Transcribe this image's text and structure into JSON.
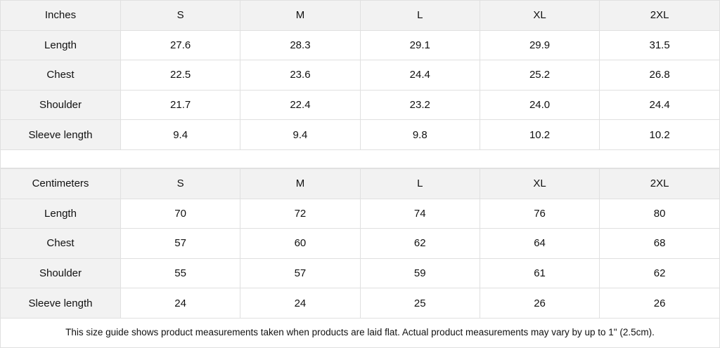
{
  "inches": {
    "header": [
      "Inches",
      "S",
      "M",
      "L",
      "XL",
      "2XL"
    ],
    "rows": [
      [
        "Length",
        "27.6",
        "28.3",
        "29.1",
        "29.9",
        "31.5"
      ],
      [
        "Chest",
        "22.5",
        "23.6",
        "24.4",
        "25.2",
        "26.8"
      ],
      [
        "Shoulder",
        "21.7",
        "22.4",
        "23.2",
        "24.0",
        "24.4"
      ],
      [
        "Sleeve length",
        "9.4",
        "9.4",
        "9.8",
        "10.2",
        "10.2"
      ]
    ]
  },
  "centimeters": {
    "header": [
      "Centimeters",
      "S",
      "M",
      "L",
      "XL",
      "2XL"
    ],
    "rows": [
      [
        "Length",
        "70",
        "72",
        "74",
        "76",
        "80"
      ],
      [
        "Chest",
        "57",
        "60",
        "62",
        "64",
        "68"
      ],
      [
        "Shoulder",
        "55",
        "57",
        "59",
        "61",
        "62"
      ],
      [
        "Sleeve length",
        "24",
        "24",
        "25",
        "26",
        "26"
      ]
    ]
  },
  "note": "This size guide shows product measurements taken when products are laid flat.  Actual product measurements may vary by up to 1\" (2.5cm)."
}
